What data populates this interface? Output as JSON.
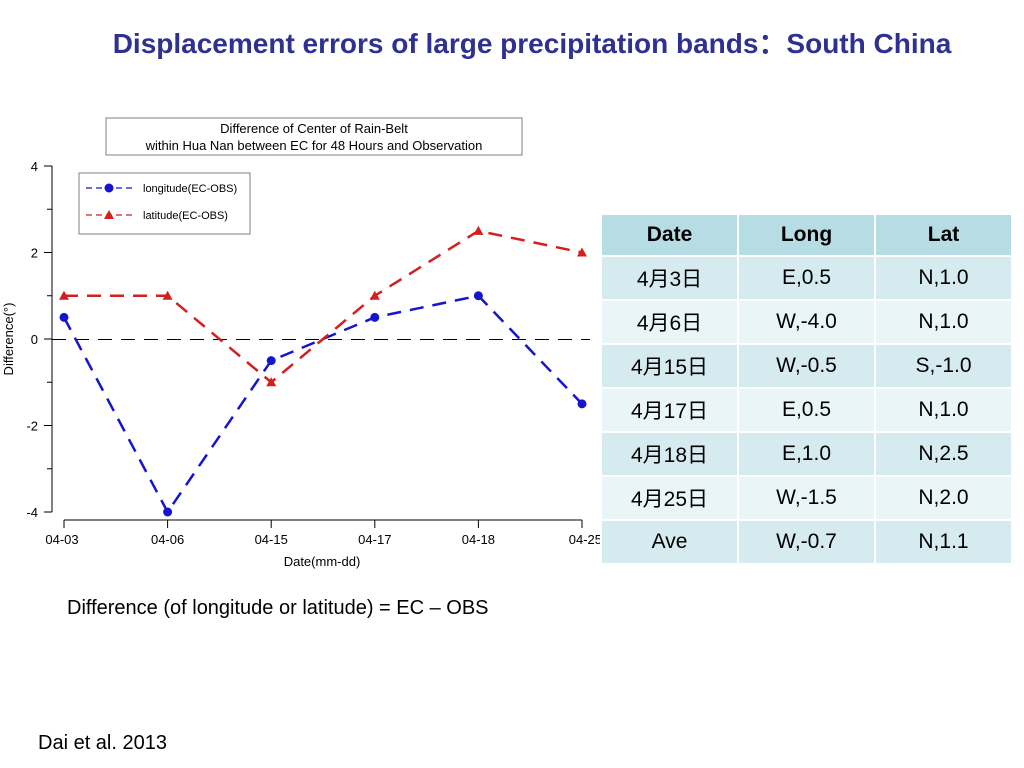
{
  "slide": {
    "title": "Displacement errors of large precipitation bands：South China",
    "formula": "Difference (of longitude or latitude) = EC – OBS",
    "citation": "Dai et al. 2013"
  },
  "chart_data": {
    "type": "line",
    "title_lines": [
      "Difference of Center of Rain-Belt",
      "within Hua Nan between EC for 48 Hours and Observation"
    ],
    "xlabel": "Date(mm-dd)",
    "ylabel": "Difference(°)",
    "categories": [
      "04-03",
      "04-06",
      "04-15",
      "04-17",
      "04-18",
      "04-25"
    ],
    "y_ticks": [
      "4",
      "2",
      "0",
      "-2",
      "-4"
    ],
    "ylim": [
      -4,
      4
    ],
    "legend_position": "top-left",
    "series": [
      {
        "name": "longitude(EC-OBS)",
        "values": [
          0.5,
          -4.0,
          -0.5,
          0.5,
          1.0,
          -1.5
        ],
        "color": "#1515D0",
        "marker": "circle"
      },
      {
        "name": "latitude(EC-OBS)",
        "values": [
          1.0,
          1.0,
          -1.0,
          1.0,
          2.5,
          2.0
        ],
        "color": "#D41F1F",
        "marker": "triangle"
      }
    ],
    "zero_line": true,
    "grid": false
  },
  "table": {
    "headers": [
      "Date",
      "Long",
      "Lat"
    ],
    "rows": [
      [
        "4月3日",
        "E,0.5",
        "N,1.0"
      ],
      [
        "4月6日",
        "W,-4.0",
        "N,1.0"
      ],
      [
        "4月15日",
        "W,-0.5",
        "S,-1.0"
      ],
      [
        "4月17日",
        "E,0.5",
        "N,1.0"
      ],
      [
        "4月18日",
        "E,1.0",
        "N,2.5"
      ],
      [
        "4月25日",
        "W,-1.5",
        "N,2.0"
      ],
      [
        "Ave",
        "W,-0.7",
        "N,1.1"
      ]
    ],
    "header_color": "#B7DDE4",
    "row_colors": [
      "#D6EBEF",
      "#EAF5F7"
    ]
  }
}
